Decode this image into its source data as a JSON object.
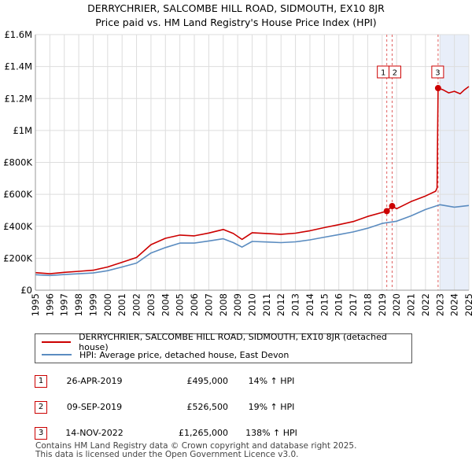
{
  "chart_data": {
    "type": "line",
    "title": "DERRYCHRIER, SALCOMBE HILL ROAD, SIDMOUTH, EX10 8JR",
    "subtitle": "Price paid vs. HM Land Registry's House Price Index (HPI)",
    "xlabel": "",
    "ylabel": "",
    "xlim": [
      1995,
      2025
    ],
    "ylim": [
      0,
      1600000
    ],
    "y_ticks": [
      0,
      200000,
      400000,
      600000,
      800000,
      1000000,
      1200000,
      1400000,
      1600000
    ],
    "y_tick_labels": [
      "£0",
      "£200K",
      "£400K",
      "£600K",
      "£800K",
      "£1M",
      "£1.2M",
      "£1.4M",
      "£1.6M"
    ],
    "x_ticks": [
      1995,
      1996,
      1997,
      1998,
      1999,
      2000,
      2001,
      2002,
      2003,
      2004,
      2005,
      2006,
      2007,
      2008,
      2009,
      2010,
      2011,
      2012,
      2013,
      2014,
      2015,
      2016,
      2017,
      2018,
      2019,
      2020,
      2021,
      2022,
      2023,
      2024,
      2025
    ],
    "grid": true,
    "series": [
      {
        "name": "DERRYCHRIER, SALCOMBE HILL ROAD, SIDMOUTH, EX10 8JR (detached house)",
        "color": "#cc0000",
        "x": [
          1995,
          1996,
          1997,
          1998,
          1999,
          2000,
          2001,
          2002,
          2003,
          2004,
          2005,
          2006,
          2007,
          2008,
          2008.7,
          2009.3,
          2010,
          2011,
          2012,
          2013,
          2014,
          2015,
          2016,
          2017,
          2018,
          2019.32,
          2019.69,
          2020,
          2021,
          2022,
          2022.7,
          2022.8,
          2022.87,
          2023.2,
          2023.6,
          2024,
          2024.4,
          2024.7,
          2025
        ],
        "values": [
          110000,
          103000,
          112000,
          118000,
          125000,
          145000,
          175000,
          205000,
          285000,
          325000,
          345000,
          340000,
          358000,
          380000,
          355000,
          318000,
          360000,
          355000,
          350000,
          357000,
          372000,
          392000,
          410000,
          430000,
          462000,
          495000,
          526500,
          510000,
          555000,
          590000,
          620000,
          640000,
          1265000,
          1255000,
          1235000,
          1245000,
          1230000,
          1255000,
          1275000
        ]
      },
      {
        "name": "HPI: Average price, detached house, East Devon",
        "color": "#5b8cc0",
        "x": [
          1995,
          1996,
          1997,
          1998,
          1999,
          2000,
          2001,
          2002,
          2003,
          2004,
          2005,
          2006,
          2007,
          2008,
          2008.7,
          2009.3,
          2010,
          2011,
          2012,
          2013,
          2014,
          2015,
          2016,
          2017,
          2018,
          2019,
          2020,
          2021,
          2022,
          2023,
          2024,
          2025
        ],
        "values": [
          97000,
          92000,
          98000,
          103000,
          108000,
          122000,
          145000,
          170000,
          233000,
          267000,
          295000,
          295000,
          308000,
          322000,
          298000,
          270000,
          305000,
          302000,
          298000,
          303000,
          315000,
          332000,
          348000,
          365000,
          388000,
          418000,
          432000,
          465000,
          505000,
          535000,
          520000,
          530000
        ]
      }
    ],
    "sales": [
      {
        "marker": "1",
        "x": 2019.32,
        "value": 495000
      },
      {
        "marker": "2",
        "x": 2019.69,
        "value": 526500
      },
      {
        "marker": "3",
        "x": 2022.87,
        "value": 1265000
      }
    ],
    "shaded_span": [
      2023.0,
      2025
    ]
  },
  "legend": {
    "property_label": "DERRYCHRIER, SALCOMBE HILL ROAD, SIDMOUTH, EX10 8JR (detached house)",
    "hpi_label": "HPI: Average price, detached house, East Devon"
  },
  "transactions": [
    {
      "marker": "1",
      "date": "26-APR-2019",
      "price": "£495,000",
      "hpi": "14% ↑ HPI"
    },
    {
      "marker": "2",
      "date": "09-SEP-2019",
      "price": "£526,500",
      "hpi": "19% ↑ HPI"
    },
    {
      "marker": "3",
      "date": "14-NOV-2022",
      "price": "£1,265,000",
      "hpi": "138% ↑ HPI"
    }
  ],
  "footer": {
    "line1": "Contains HM Land Registry data © Crown copyright and database right 2025.",
    "line2": "This data is licensed under the Open Government Licence v3.0."
  }
}
